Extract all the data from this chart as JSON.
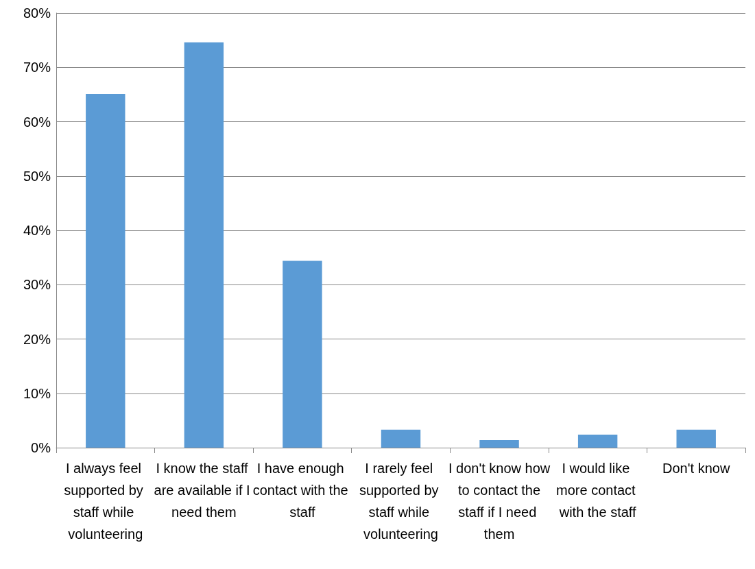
{
  "chart_data": {
    "type": "bar",
    "categories": [
      "I always feel supported by staff while volunteering",
      "I know the staff are available if I need them",
      "I have enough contact with the staff",
      "I rarely feel supported by staff while volunteering",
      "I don't know how to contact the staff if I need them",
      "I would like more contact with the staff",
      "Don't know"
    ],
    "values": [
      65.1,
      74.6,
      34.4,
      3.3,
      1.4,
      2.4,
      3.3
    ],
    "color": "#5b9bd5",
    "ylim": [
      0,
      80
    ],
    "yticks": [
      {
        "value": 0,
        "label": "0%"
      },
      {
        "value": 10,
        "label": "10%"
      },
      {
        "value": 20,
        "label": "20%"
      },
      {
        "value": 30,
        "label": "30%"
      },
      {
        "value": 40,
        "label": "40%"
      },
      {
        "value": 50,
        "label": "50%"
      },
      {
        "value": 60,
        "label": "60%"
      },
      {
        "value": 70,
        "label": "70%"
      },
      {
        "value": 80,
        "label": "80%"
      }
    ],
    "grid": "y"
  }
}
